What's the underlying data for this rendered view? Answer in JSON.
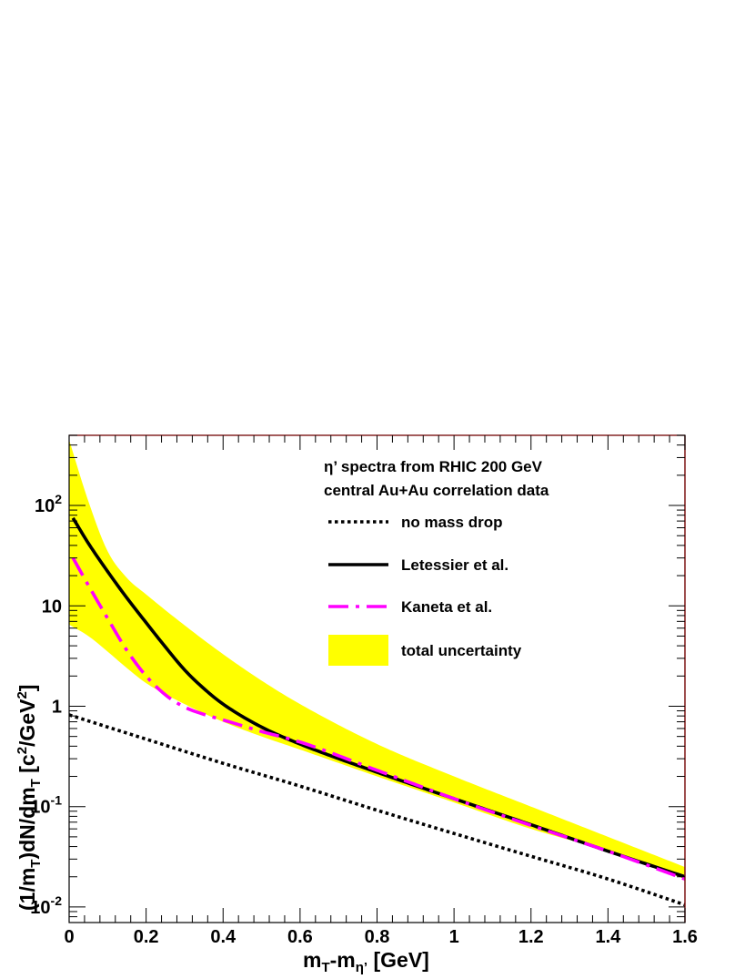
{
  "chart_data": {
    "type": "line",
    "title_lines": [
      "η’ spectra from RHIC 200 GeV",
      "central Au+Au correlation data"
    ],
    "xlabel": {
      "main": "m",
      "sub1": "T",
      "mid": "-m",
      "sub2": "η’",
      "tail": " [GeV]"
    },
    "ylabel": {
      "p1": "(1/m",
      "s1": "T",
      "p2": ")dN/dm",
      "s2": "T",
      "p3": " [c",
      "e1": "2",
      "p4": "/GeV",
      "e2": "2",
      "p5": "]"
    },
    "xlim": [
      0,
      1.6
    ],
    "ylim": [
      0.007,
      500
    ],
    "yscale": "log",
    "x_ticks": [
      {
        "v": 0,
        "label": "0"
      },
      {
        "v": 0.2,
        "label": "0.2"
      },
      {
        "v": 0.4,
        "label": "0.4"
      },
      {
        "v": 0.6,
        "label": "0.6"
      },
      {
        "v": 0.8,
        "label": "0.8"
      },
      {
        "v": 1.0,
        "label": "1"
      },
      {
        "v": 1.2,
        "label": "1.2"
      },
      {
        "v": 1.4,
        "label": "1.4"
      },
      {
        "v": 1.6,
        "label": "1.6"
      }
    ],
    "y_ticks": [
      {
        "v": 0.01,
        "base": "10",
        "exp": "-2"
      },
      {
        "v": 0.1,
        "base": "10",
        "exp": "-1"
      },
      {
        "v": 1,
        "base": "1",
        "exp": ""
      },
      {
        "v": 10,
        "base": "10",
        "exp": ""
      },
      {
        "v": 100,
        "base": "10",
        "exp": "2"
      }
    ],
    "band": {
      "name": "total uncertainty",
      "color": "#ffff00",
      "x": [
        0.0,
        0.05,
        0.1,
        0.15,
        0.2,
        0.3,
        0.4,
        0.5,
        0.6,
        0.8,
        1.0,
        1.2,
        1.4,
        1.6
      ],
      "upper": [
        450,
        110,
        35,
        19,
        13,
        6.4,
        3.3,
        1.8,
        1.05,
        0.42,
        0.2,
        0.1,
        0.05,
        0.025
      ],
      "lower": [
        6.5,
        5.0,
        3.5,
        2.4,
        1.7,
        1.05,
        0.7,
        0.5,
        0.37,
        0.2,
        0.11,
        0.06,
        0.036,
        0.019
      ]
    },
    "series": [
      {
        "name": "no mass drop",
        "style": "dotted",
        "color": "#000000",
        "x": [
          0.0,
          0.2,
          0.4,
          0.6,
          0.8,
          1.0,
          1.2,
          1.4,
          1.6
        ],
        "y": [
          0.82,
          0.47,
          0.27,
          0.16,
          0.092,
          0.054,
          0.032,
          0.019,
          0.0105
        ]
      },
      {
        "name": "Letessier et al.",
        "style": "solid",
        "color": "#000000",
        "x": [
          0.01,
          0.05,
          0.1,
          0.15,
          0.2,
          0.25,
          0.3,
          0.35,
          0.4,
          0.5,
          0.6,
          0.8,
          1.0,
          1.2,
          1.4,
          1.6
        ],
        "y": [
          75,
          42,
          22,
          12,
          6.8,
          3.9,
          2.3,
          1.5,
          1.05,
          0.62,
          0.42,
          0.22,
          0.12,
          0.066,
          0.036,
          0.02
        ]
      },
      {
        "name": "Kaneta et al.",
        "style": "dashdot",
        "color": "#ff00ff",
        "x": [
          0.01,
          0.05,
          0.1,
          0.15,
          0.2,
          0.25,
          0.3,
          0.35,
          0.4,
          0.5,
          0.6,
          0.8,
          1.0,
          1.2,
          1.4,
          1.6
        ],
        "y": [
          30,
          16,
          7.5,
          3.6,
          2.0,
          1.3,
          0.98,
          0.83,
          0.73,
          0.56,
          0.44,
          0.23,
          0.12,
          0.065,
          0.036,
          0.019
        ]
      }
    ],
    "legend": {
      "position": "top-right"
    },
    "grid": false
  }
}
